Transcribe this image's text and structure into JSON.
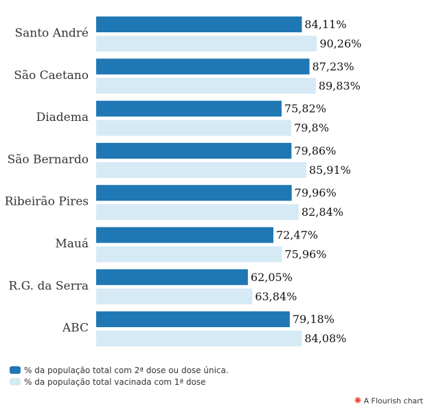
{
  "chart_data": {
    "type": "bar",
    "orientation": "horizontal",
    "categories": [
      "Santo André",
      "São Caetano",
      "Diadema",
      "São Bernardo",
      "Ribeirão Pires",
      "Mauá",
      "R.G. da Serra",
      "ABC"
    ],
    "series": [
      {
        "name": "% da população total com 2ª dose ou dose única.",
        "color": "#1f77b4",
        "values": [
          84.11,
          87.23,
          75.82,
          79.86,
          79.96,
          72.47,
          62.05,
          79.18
        ],
        "labels": [
          "84,11%",
          "87,23%",
          "75,82%",
          "79,86%",
          "79,96%",
          "72,47%",
          "62,05%",
          "79,18%"
        ]
      },
      {
        "name": "% da população total vacinada com 1ª dose",
        "color": "#d6eaf5",
        "values": [
          90.26,
          89.83,
          79.8,
          85.91,
          82.84,
          75.96,
          63.84,
          84.08
        ],
        "labels": [
          "90,26%",
          "89,83%",
          "79,8%",
          "85,91%",
          "82,84%",
          "75,96%",
          "63,84%",
          "84,08%"
        ]
      }
    ],
    "xlim": [
      0,
      100
    ],
    "grid": false,
    "legend_position": "bottom-left"
  },
  "credit": {
    "text": "A Flourish chart",
    "icon": "flourish-icon"
  }
}
